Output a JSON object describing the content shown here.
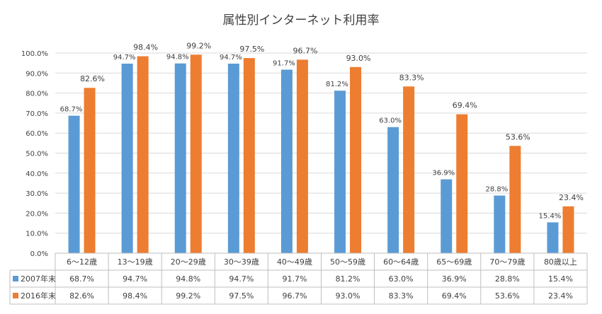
{
  "chart_data": {
    "type": "bar",
    "title": "属性別インターネット利用率",
    "categories": [
      "6〜12歳",
      "13〜19歳",
      "20〜29歳",
      "30〜39歳",
      "40〜49歳",
      "50〜59歳",
      "60〜64歳",
      "65〜69歳",
      "70〜79歳",
      "80歳以上"
    ],
    "series": [
      {
        "name": "2007年末",
        "color": "#5b9bd5",
        "values": [
          68.7,
          94.7,
          94.8,
          94.7,
          91.7,
          81.2,
          63.0,
          36.9,
          28.8,
          15.4
        ],
        "labels": [
          "68.7%",
          "94.7%",
          "94.8%",
          "94.7%",
          "91.7%",
          "81.2%",
          "63.0%",
          "36.9%",
          "28.8%",
          "15.4%"
        ]
      },
      {
        "name": "2016年末",
        "color": "#ed7d31",
        "values": [
          82.6,
          98.4,
          99.2,
          97.5,
          96.7,
          93.0,
          83.3,
          69.4,
          53.6,
          23.4
        ],
        "labels": [
          "82.6%",
          "98.4%",
          "99.2%",
          "97.5%",
          "96.7%",
          "93.0%",
          "83.3%",
          "69.4%",
          "53.6%",
          "23.4%"
        ]
      }
    ],
    "ylim": [
      0,
      100
    ],
    "yticks": [
      0,
      10,
      20,
      30,
      40,
      50,
      60,
      70,
      80,
      90,
      100
    ],
    "ytick_labels": [
      "0.0%",
      "10.0%",
      "20.0%",
      "30.0%",
      "40.0%",
      "50.0%",
      "60.0%",
      "70.0%",
      "80.0%",
      "90.0%",
      "100.0%"
    ],
    "grid": true,
    "legend": "data-table",
    "data_table": true
  }
}
